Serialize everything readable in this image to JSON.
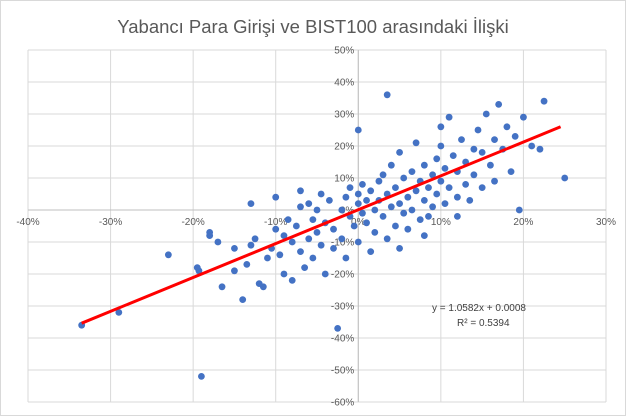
{
  "chart_data": {
    "type": "scatter",
    "title": "Yabancı Para Girişi ve BIST100 arasındaki İlişki",
    "xlabel": "",
    "ylabel": "",
    "xlim": [
      -0.4,
      0.3
    ],
    "ylim": [
      -0.6,
      0.5
    ],
    "x_ticks": [
      "-40%",
      "-30%",
      "-20%",
      "-10%",
      "0%",
      "10%",
      "20%",
      "30%"
    ],
    "y_ticks": [
      "-60%",
      "-50%",
      "-40%",
      "-30%",
      "-20%",
      "-10%",
      "0%",
      "10%",
      "20%",
      "30%",
      "40%",
      "50%"
    ],
    "grid": true,
    "marker_color": "#4472c4",
    "trendline_color": "#ff0000",
    "trendline": {
      "slope": 1.0582,
      "intercept": 0.0008,
      "x_range": [
        -0.335,
        0.245
      ]
    },
    "equation": "y = 1.0582x + 0.0008",
    "r_squared": "R² = 0.5394",
    "series": [
      {
        "points": [
          [
            -0.335,
            -0.36
          ],
          [
            -0.29,
            -0.32
          ],
          [
            -0.23,
            -0.14
          ],
          [
            -0.195,
            -0.18
          ],
          [
            -0.193,
            -0.19
          ],
          [
            -0.19,
            -0.52
          ],
          [
            -0.18,
            -0.08
          ],
          [
            -0.18,
            -0.07
          ],
          [
            -0.17,
            -0.1
          ],
          [
            -0.165,
            -0.24
          ],
          [
            -0.15,
            -0.19
          ],
          [
            -0.14,
            -0.28
          ],
          [
            -0.135,
            -0.17
          ],
          [
            -0.13,
            -0.11
          ],
          [
            -0.125,
            -0.09
          ],
          [
            -0.12,
            -0.23
          ],
          [
            -0.115,
            -0.24
          ],
          [
            -0.11,
            -0.15
          ],
          [
            -0.105,
            -0.12
          ],
          [
            -0.1,
            -0.06
          ],
          [
            -0.1,
            0.04
          ],
          [
            -0.095,
            -0.14
          ],
          [
            -0.09,
            -0.08
          ],
          [
            -0.09,
            -0.2
          ],
          [
            -0.085,
            -0.03
          ],
          [
            -0.08,
            -0.1
          ],
          [
            -0.08,
            -0.22
          ],
          [
            -0.075,
            -0.05
          ],
          [
            -0.07,
            -0.13
          ],
          [
            -0.07,
            0.01
          ],
          [
            -0.065,
            -0.18
          ],
          [
            -0.06,
            0.02
          ],
          [
            -0.06,
            -0.09
          ],
          [
            -0.055,
            -0.03
          ],
          [
            -0.055,
            -0.15
          ],
          [
            -0.05,
            0.0
          ],
          [
            -0.05,
            -0.07
          ],
          [
            -0.045,
            -0.11
          ],
          [
            -0.045,
            0.05
          ],
          [
            -0.04,
            -0.04
          ],
          [
            -0.04,
            -0.2
          ],
          [
            -0.035,
            0.03
          ],
          [
            -0.03,
            -0.06
          ],
          [
            -0.03,
            -0.12
          ],
          [
            -0.025,
            -0.37
          ],
          [
            -0.02,
            0.0
          ],
          [
            -0.02,
            -0.09
          ],
          [
            -0.015,
            0.04
          ],
          [
            -0.015,
            -0.15
          ],
          [
            -0.01,
            -0.02
          ],
          [
            -0.01,
            0.07
          ],
          [
            -0.005,
            -0.05
          ],
          [
            0.0,
            0.02
          ],
          [
            0.0,
            -0.1
          ],
          [
            0.005,
            -0.01
          ],
          [
            0.005,
            0.08
          ],
          [
            0.01,
            -0.04
          ],
          [
            0.01,
            0.03
          ],
          [
            0.015,
            -0.13
          ],
          [
            0.015,
            0.06
          ],
          [
            0.02,
            0.0
          ],
          [
            0.02,
            -0.07
          ],
          [
            0.025,
            0.09
          ],
          [
            0.025,
            0.03
          ],
          [
            0.03,
            -0.02
          ],
          [
            0.03,
            0.11
          ],
          [
            0.035,
            0.05
          ],
          [
            0.035,
            -0.09
          ],
          [
            0.04,
            0.01
          ],
          [
            0.04,
            0.14
          ],
          [
            0.045,
            -0.05
          ],
          [
            0.045,
            0.07
          ],
          [
            0.05,
            0.02
          ],
          [
            0.05,
            0.18
          ],
          [
            0.055,
            -0.01
          ],
          [
            0.055,
            0.1
          ],
          [
            0.06,
            0.04
          ],
          [
            0.06,
            -0.06
          ],
          [
            0.065,
            0.12
          ],
          [
            0.065,
            0.0
          ],
          [
            0.07,
            0.06
          ],
          [
            0.07,
            0.21
          ],
          [
            0.075,
            -0.03
          ],
          [
            0.075,
            0.09
          ],
          [
            0.08,
            0.03
          ],
          [
            0.08,
            0.14
          ],
          [
            0.085,
            0.07
          ],
          [
            0.085,
            -0.02
          ],
          [
            0.09,
            0.11
          ],
          [
            0.09,
            0.01
          ],
          [
            0.095,
            0.16
          ],
          [
            0.095,
            0.05
          ],
          [
            0.1,
            0.09
          ],
          [
            0.1,
            0.2
          ],
          [
            0.105,
            0.02
          ],
          [
            0.105,
            0.13
          ],
          [
            0.11,
            0.07
          ],
          [
            0.11,
            0.29
          ],
          [
            0.115,
            0.17
          ],
          [
            0.12,
            0.04
          ],
          [
            0.12,
            0.12
          ],
          [
            0.125,
            0.22
          ],
          [
            0.13,
            0.08
          ],
          [
            0.13,
            0.15
          ],
          [
            0.135,
            0.03
          ],
          [
            0.14,
            0.19
          ],
          [
            0.14,
            0.11
          ],
          [
            0.145,
            0.25
          ],
          [
            0.15,
            0.07
          ],
          [
            0.15,
            0.18
          ],
          [
            0.155,
            0.3
          ],
          [
            0.16,
            0.14
          ],
          [
            0.165,
            0.22
          ],
          [
            0.165,
            0.09
          ],
          [
            0.17,
            0.33
          ],
          [
            0.175,
            0.19
          ],
          [
            0.18,
            0.26
          ],
          [
            0.185,
            0.12
          ],
          [
            0.19,
            0.23
          ],
          [
            0.195,
            0.0
          ],
          [
            0.2,
            0.29
          ],
          [
            0.21,
            0.2
          ],
          [
            0.22,
            0.19
          ],
          [
            0.225,
            0.34
          ],
          [
            0.25,
            0.1
          ],
          [
            0.035,
            0.36
          ],
          [
            -0.0,
            0.25
          ],
          [
            0.0,
            0.05
          ],
          [
            -0.07,
            0.06
          ],
          [
            -0.13,
            0.02
          ],
          [
            -0.15,
            -0.12
          ],
          [
            0.05,
            -0.12
          ],
          [
            0.08,
            -0.08
          ],
          [
            0.12,
            -0.02
          ],
          [
            0.1,
            0.26
          ]
        ]
      }
    ]
  }
}
